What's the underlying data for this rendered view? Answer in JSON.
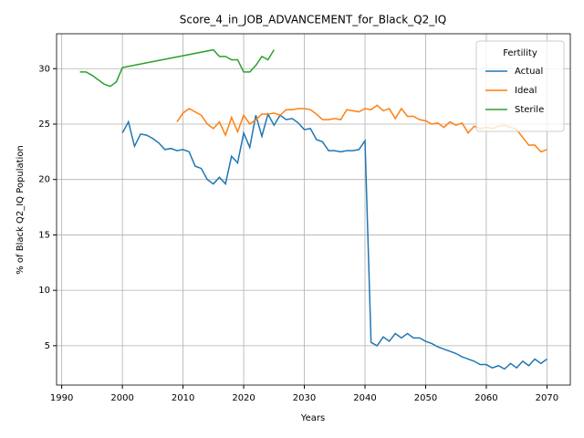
{
  "chart_data": {
    "type": "line",
    "title": "Score_4_in_JOB_ADVANCEMENT_for_Black_Q2_IQ",
    "xlabel": "Years",
    "ylabel": "% of Black Q2_IQ Population",
    "legend_title": "Fertility",
    "legend": "upper right",
    "grid": true,
    "xlim": [
      1989.15,
      2073.85
    ],
    "ylim": [
      1.45,
      33.15
    ],
    "xticks": [
      1990,
      2000,
      2010,
      2020,
      2030,
      2040,
      2050,
      2060,
      2070
    ],
    "yticks": [
      5,
      10,
      15,
      20,
      25,
      30
    ],
    "series": [
      {
        "name": "Actual",
        "color": "#1f77b4",
        "x": [
          2000,
          2001,
          2002,
          2003,
          2004,
          2005,
          2006,
          2007,
          2008,
          2009,
          2010,
          2011,
          2012,
          2013,
          2014,
          2015,
          2016,
          2017,
          2018,
          2019,
          2020,
          2021,
          2022,
          2023,
          2024,
          2025,
          2026,
          2027,
          2028,
          2029,
          2030,
          2031,
          2032,
          2033,
          2034,
          2035,
          2036,
          2037,
          2038,
          2039,
          2040,
          2041,
          2042,
          2043,
          2044,
          2045,
          2046,
          2047,
          2048,
          2049,
          2050,
          2051,
          2052,
          2053,
          2054,
          2055,
          2056,
          2057,
          2058,
          2059,
          2060,
          2061,
          2062,
          2063,
          2064,
          2065,
          2066,
          2067,
          2068,
          2069,
          2070
        ],
        "values": [
          24.2,
          25.2,
          23.0,
          24.1,
          24.0,
          23.7,
          23.3,
          22.7,
          22.8,
          22.6,
          22.7,
          22.5,
          21.2,
          21.0,
          20.0,
          19.6,
          20.2,
          19.6,
          22.1,
          21.5,
          24.2,
          22.9,
          25.8,
          23.9,
          25.9,
          24.9,
          25.8,
          25.4,
          25.5,
          25.1,
          24.5,
          24.6,
          23.6,
          23.4,
          22.6,
          22.6,
          22.5,
          22.6,
          22.6,
          22.7,
          23.5,
          5.3,
          5.0,
          5.8,
          5.4,
          6.1,
          5.7,
          6.1,
          5.7,
          5.7,
          5.4,
          5.2,
          4.9,
          4.7,
          4.5,
          4.3,
          4.0,
          3.8,
          3.6,
          3.3,
          3.3,
          3.0,
          3.2,
          2.9,
          3.4,
          3.0,
          3.6,
          3.2,
          3.8,
          3.4,
          3.8
        ]
      },
      {
        "name": "Ideal",
        "color": "#ff7f0e",
        "x": [
          2009,
          2010,
          2011,
          2012,
          2013,
          2014,
          2015,
          2016,
          2017,
          2018,
          2019,
          2020,
          2021,
          2022,
          2023,
          2024,
          2025,
          2026,
          2027,
          2028,
          2029,
          2030,
          2031,
          2032,
          2033,
          2034,
          2035,
          2036,
          2037,
          2038,
          2039,
          2040,
          2041,
          2042,
          2043,
          2044,
          2045,
          2046,
          2047,
          2048,
          2049,
          2050,
          2051,
          2052,
          2053,
          2054,
          2055,
          2056,
          2057,
          2058,
          2059,
          2060,
          2061,
          2062,
          2063,
          2064,
          2065,
          2066,
          2067,
          2068,
          2069,
          2070
        ],
        "values": [
          25.2,
          26.0,
          26.4,
          26.1,
          25.8,
          25.0,
          24.6,
          25.2,
          24.0,
          25.6,
          24.3,
          25.8,
          25.0,
          25.4,
          25.9,
          25.9,
          26.0,
          25.8,
          26.3,
          26.3,
          26.4,
          26.4,
          26.3,
          25.9,
          25.4,
          25.4,
          25.5,
          25.4,
          26.3,
          26.2,
          26.1,
          26.4,
          26.3,
          26.7,
          26.2,
          26.4,
          25.5,
          26.4,
          25.7,
          25.7,
          25.4,
          25.3,
          25.0,
          25.1,
          24.7,
          25.2,
          24.9,
          25.1,
          24.2,
          24.8,
          24.6,
          24.7,
          24.6,
          24.8,
          24.9,
          24.7,
          24.5,
          23.8,
          23.1,
          23.1,
          22.5,
          22.7
        ]
      },
      {
        "name": "Sterile",
        "color": "#2ca02c",
        "x": [
          1993,
          1994,
          1995,
          1996,
          1997,
          1998,
          1999,
          2000,
          2015,
          2016,
          2017,
          2018,
          2019,
          2020,
          2021,
          2022,
          2023,
          2024,
          2025
        ],
        "values": [
          29.7,
          29.7,
          29.4,
          29.0,
          28.6,
          28.4,
          28.8,
          30.1,
          31.7,
          31.1,
          31.1,
          30.8,
          30.8,
          29.7,
          29.7,
          30.3,
          31.1,
          30.8,
          31.7
        ]
      }
    ]
  }
}
